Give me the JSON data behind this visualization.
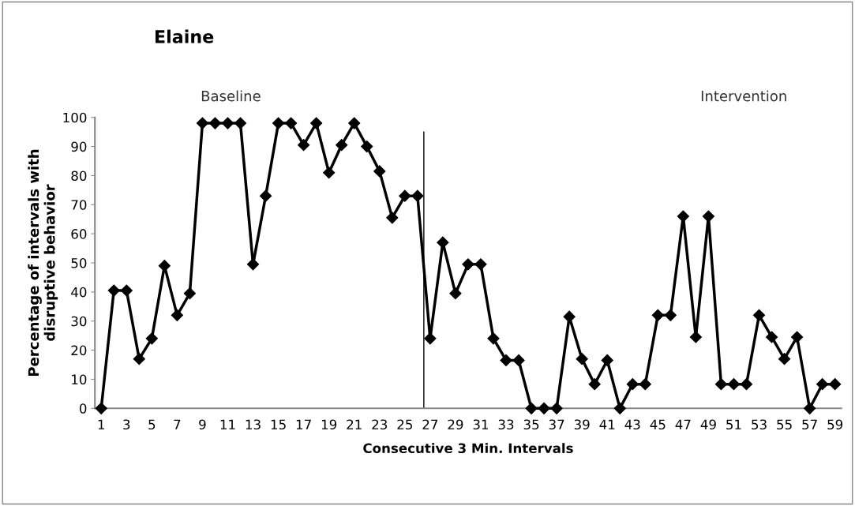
{
  "chart_data": {
    "type": "line",
    "title": "Elaine",
    "xlabel": "Consecutive 3 Min. Intervals",
    "ylabel": "Percentage of intervals with\ndisruptive behavior",
    "x": [
      1,
      2,
      3,
      4,
      5,
      6,
      7,
      8,
      9,
      10,
      11,
      12,
      13,
      14,
      15,
      16,
      17,
      18,
      19,
      20,
      21,
      22,
      23,
      24,
      25,
      26,
      27,
      28,
      29,
      30,
      31,
      32,
      33,
      34,
      35,
      36,
      37,
      38,
      39,
      40,
      41,
      42,
      43,
      44,
      45,
      46,
      47,
      48,
      49,
      50,
      51,
      52,
      53,
      54,
      55,
      56,
      57,
      58,
      59
    ],
    "series": [
      {
        "color": "#000000",
        "values": [
          0,
          40.5,
          40.5,
          17,
          24,
          49,
          32,
          39.5,
          98,
          98,
          98,
          98,
          49.5,
          73,
          98,
          98,
          90.5,
          98,
          81,
          90.5,
          98,
          90,
          81.5,
          65.5,
          73,
          73,
          24,
          57,
          39.5,
          49.5,
          49.5,
          24,
          16.5,
          16.5,
          0,
          0,
          0,
          31.5,
          17,
          8.3,
          16.5,
          0,
          8.3,
          8.3,
          32,
          32,
          66,
          24.5,
          66,
          8.3,
          8.3,
          8.3,
          32,
          24.5,
          17,
          24.5,
          0,
          8.3,
          8.3
        ]
      }
    ],
    "xlim": [
      0.5,
      59.5
    ],
    "xticks": [
      1,
      3,
      5,
      7,
      9,
      11,
      13,
      15,
      17,
      19,
      21,
      23,
      25,
      27,
      29,
      31,
      33,
      35,
      37,
      39,
      41,
      43,
      45,
      47,
      49,
      51,
      53,
      55,
      57,
      59
    ],
    "ylim": [
      0,
      100
    ],
    "yticks": [
      0,
      10,
      20,
      30,
      40,
      50,
      60,
      70,
      80,
      90,
      100
    ],
    "ref_lines": [
      {
        "axis": "x",
        "value": 26.5,
        "color": "#000000"
      }
    ],
    "annotations": [
      "Baseline",
      "Intervention"
    ],
    "grid": false,
    "legend": false,
    "marker": "diamond",
    "line_style": "solid"
  }
}
